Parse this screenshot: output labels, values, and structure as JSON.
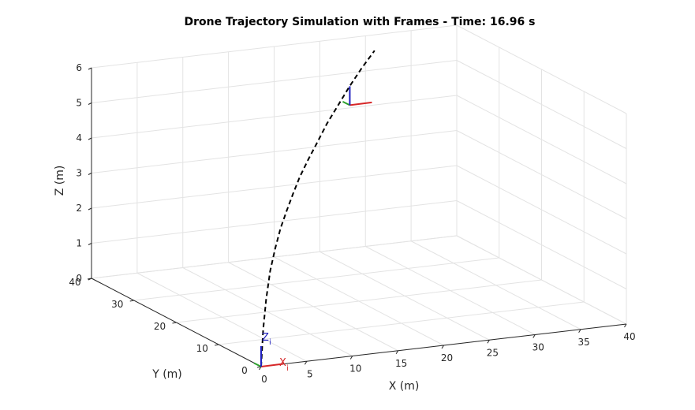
{
  "chart_data": {
    "type": "line3d",
    "title": "Drone Trajectory Simulation with Frames - Time: 16.96 s",
    "xlabel": "X (m)",
    "ylabel": "Y (m)",
    "zlabel": "Z (m)",
    "xlim": [
      0,
      40
    ],
    "ylim": [
      0,
      40
    ],
    "zlim": [
      0,
      6
    ],
    "xticks": [
      0,
      5,
      10,
      15,
      20,
      25,
      30,
      35,
      40
    ],
    "yticks": [
      0,
      10,
      20,
      30,
      40
    ],
    "zticks": [
      0,
      1,
      2,
      3,
      4,
      5,
      6
    ],
    "grid": true,
    "series": [
      {
        "style": "dashed",
        "color": "#000000",
        "x": [
          0,
          0.5,
          1.2,
          2.2,
          3.5,
          5.0,
          6.8,
          8.8,
          11.0,
          13.5,
          16.2,
          19.0,
          22.0,
          25.0,
          28.0,
          31.0
        ],
        "y": [
          0,
          0.6,
          1.4,
          2.6,
          4.2,
          6.2,
          8.6,
          11.4,
          14.6,
          18.0,
          21.6,
          25.4,
          29.2,
          33.0,
          36.6,
          40.0
        ],
        "z": [
          0,
          1.0,
          1.8,
          2.5,
          3.0,
          3.4,
          3.7,
          3.95,
          4.15,
          4.35,
          4.55,
          4.75,
          4.95,
          5.15,
          5.35,
          5.55
        ]
      }
    ],
    "frames": [
      {
        "name": "inertial",
        "origin": [
          0,
          0,
          0
        ],
        "axis_labels": {
          "x": "X",
          "z": "Z",
          "subscript": "i"
        }
      },
      {
        "name": "body",
        "origin": [
          22.9,
          28.4,
          4.97
        ]
      }
    ],
    "colors": {
      "x_axis": "#d62728",
      "y_axis": "#2ca02c",
      "z_axis": "#1f1fbf",
      "trajectory": "#000000"
    }
  }
}
